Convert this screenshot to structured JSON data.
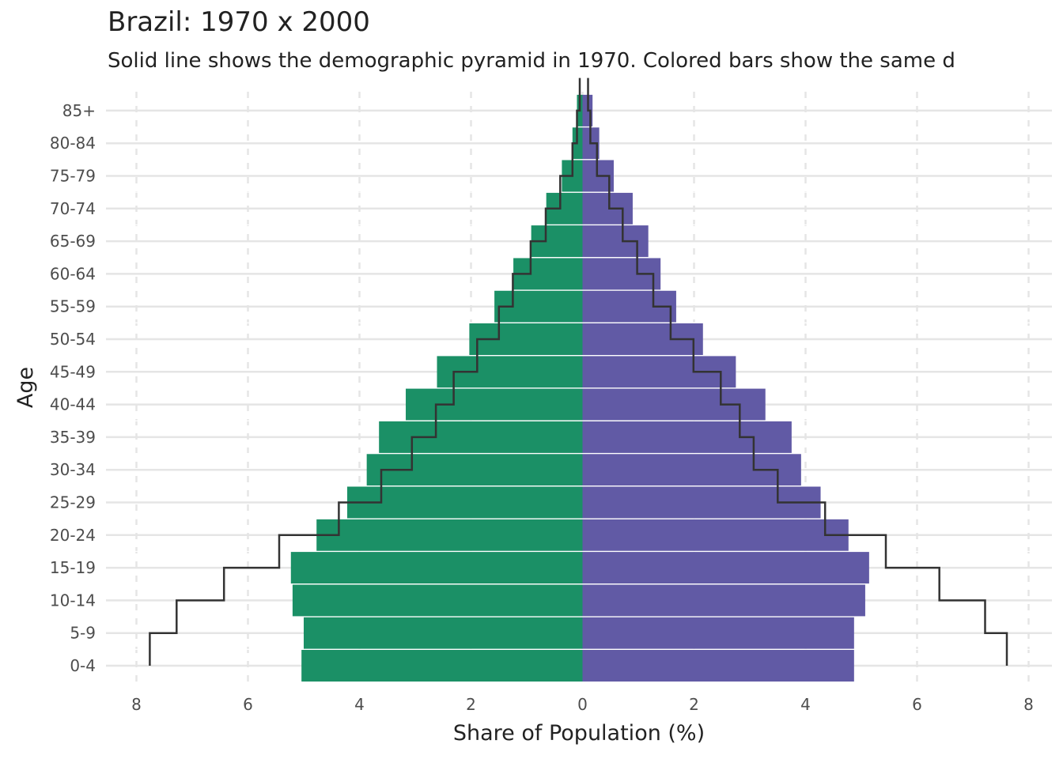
{
  "chart_data": {
    "type": "bar",
    "title": "Brazil: 1970 x 2000",
    "subtitle": "Solid line shows the demographic pyramid in 1970. Colored bars show the same d",
    "xlabel": "Share of Population (%)",
    "ylabel": "Age",
    "xlim": [
      -8,
      8
    ],
    "x_ticks": [
      -8,
      -6,
      -4,
      -2,
      0,
      2,
      4,
      6,
      8
    ],
    "x_tick_labels": [
      "8",
      "6",
      "4",
      "2",
      "0",
      "2",
      "4",
      "6",
      "8"
    ],
    "categories": [
      "0-4",
      "5-9",
      "10-14",
      "15-19",
      "20-24",
      "25-29",
      "30-34",
      "35-39",
      "40-44",
      "45-49",
      "50-54",
      "55-59",
      "60-64",
      "65-69",
      "70-74",
      "75-79",
      "80-84",
      "85+"
    ],
    "series": [
      {
        "values": [
          5.04,
          5.0,
          5.2,
          5.23,
          4.77,
          4.22,
          3.87,
          3.65,
          3.17,
          2.61,
          2.03,
          1.58,
          1.24,
          0.92,
          0.65,
          0.37,
          0.18,
          0.1
        ],
        "color": "#1b9066"
      },
      {
        "values": [
          4.87,
          4.87,
          5.07,
          5.14,
          4.77,
          4.27,
          3.92,
          3.75,
          3.28,
          2.75,
          2.16,
          1.68,
          1.4,
          1.18,
          0.9,
          0.56,
          0.3,
          0.18
        ],
        "color": "#615aa5"
      }
    ],
    "line_1970": {
      "left_values": [
        7.76,
        7.28,
        6.43,
        5.44,
        4.37,
        3.61,
        3.06,
        2.63,
        2.31,
        1.89,
        1.5,
        1.25,
        0.93,
        0.66,
        0.4,
        0.18,
        0.1,
        0.05
      ],
      "right_values": [
        7.61,
        7.22,
        6.4,
        5.44,
        4.35,
        3.5,
        3.07,
        2.82,
        2.48,
        1.99,
        1.58,
        1.27,
        0.98,
        0.72,
        0.48,
        0.26,
        0.14,
        0.1
      ],
      "color": "#333333"
    },
    "grid": true,
    "legend": "none"
  }
}
